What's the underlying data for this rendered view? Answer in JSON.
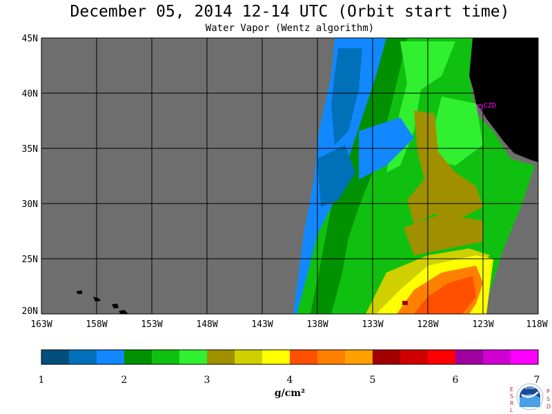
{
  "header": {
    "title": "December 05, 2014  12-14 UTC  (Orbit start time)",
    "subtitle": "Water Vapor (Wentz algorithm)"
  },
  "map": {
    "lat_labels": [
      "45N",
      "40N",
      "35N",
      "30N",
      "25N",
      "20N"
    ],
    "lon_labels": [
      "163W",
      "158W",
      "153W",
      "148W",
      "143W",
      "138W",
      "133W",
      "128W",
      "123W",
      "118W"
    ],
    "station_label": "CZD",
    "colors": {
      "no_data": "#6e6e6e",
      "land": "#000000",
      "grid": "#000000",
      "station": "#ff00ff"
    }
  },
  "legend": {
    "tick_labels": [
      "1",
      "2",
      "3",
      "4",
      "5",
      "6",
      "7"
    ],
    "unit": "g/cm²",
    "colors": [
      "#004f7a",
      "#0070b8",
      "#1188ff",
      "#009000",
      "#10c010",
      "#30f030",
      "#a09000",
      "#d0d000",
      "#ffff00",
      "#ff5000",
      "#ff8000",
      "#ffa000",
      "#a00000",
      "#d00000",
      "#ff0000",
      "#a000a0",
      "#d000d0",
      "#ff00ff"
    ]
  },
  "logo": {
    "left_letters": "ESRL",
    "right_letters": "PSD",
    "center_text": "NOAA"
  }
}
